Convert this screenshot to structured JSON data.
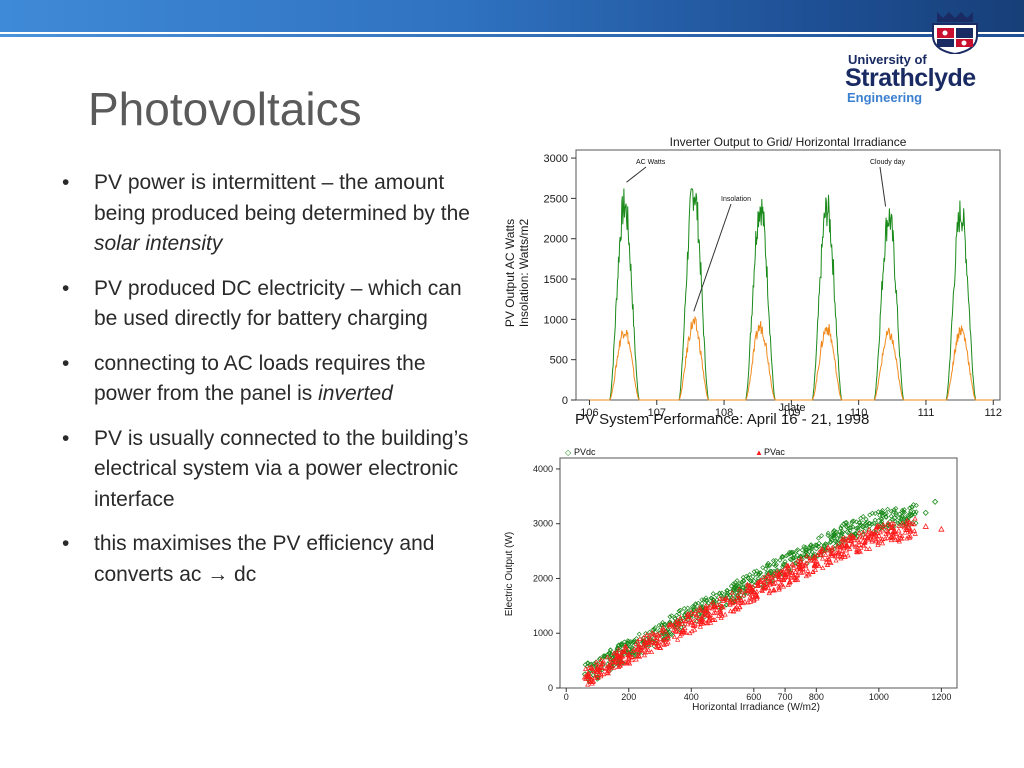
{
  "slide": {
    "title": "Photovoltaics",
    "logo": {
      "line1": "University of",
      "line2": "Strathclyde",
      "line3": "Engineering"
    },
    "bullets": [
      {
        "text": "PV power is intermittent – the amount being produced being determined by the ",
        "emphasis": "solar intensity",
        "after": ""
      },
      {
        "text": "PV produced DC electricity – which can be used directly for battery charging",
        "emphasis": "",
        "after": ""
      },
      {
        "text": "connecting to AC loads requires the power from the panel is ",
        "emphasis": "inverted",
        "after": ""
      },
      {
        "text": "PV is usually connected to the building’s electrical system via a power electronic interface",
        "emphasis": "",
        "after": ""
      },
      {
        "text": "this maximises the PV efficiency and converts ac → dc",
        "emphasis": "",
        "after": ""
      }
    ],
    "bullet_symbol": "•"
  },
  "colors": {
    "green": "#1a8a1a",
    "orange": "#f08a1c",
    "red": "#ff1a1a",
    "navy": "#1a2b63"
  },
  "chart_data": [
    {
      "type": "line",
      "title": "Inverter Output to Grid/ Horizontal Irradiance",
      "subtitle": "PV System Performance: April  16 - 21, 1998",
      "xlabel": "Jdate",
      "ylabel_lines": [
        "PV Output AC Watts",
        "Insolation: Watts/m2"
      ],
      "xlim": [
        105.8,
        112.1
      ],
      "ylim": [
        0,
        3100
      ],
      "xticks": [
        106,
        107,
        108,
        109,
        110,
        111,
        112
      ],
      "yticks": [
        0,
        500,
        1000,
        1500,
        2000,
        2500,
        3000
      ],
      "annotations": [
        {
          "text": "AC Watts",
          "x": 106.55,
          "y": 2700
        },
        {
          "text": "Insolation",
          "x": 107.55,
          "y": 1100
        },
        {
          "text": "Cloudy day",
          "x": 110.4,
          "y": 2400
        }
      ],
      "series": [
        {
          "name": "AC Watts",
          "color": "#1a8a1a",
          "days": [
            {
              "center": 106.52,
              "peak": 2650
            },
            {
              "center": 107.55,
              "peak": 2850
            },
            {
              "center": 108.54,
              "peak": 2650
            },
            {
              "center": 109.53,
              "peak": 2600
            },
            {
              "center": 110.45,
              "peak": 2500
            },
            {
              "center": 111.52,
              "peak": 2550
            }
          ]
        },
        {
          "name": "Insolation",
          "color": "#f08a1c",
          "days": [
            {
              "center": 106.52,
              "peak": 950
            },
            {
              "center": 107.55,
              "peak": 1050
            },
            {
              "center": 108.54,
              "peak": 1000
            },
            {
              "center": 109.53,
              "peak": 980
            },
            {
              "center": 110.45,
              "peak": 900
            },
            {
              "center": 111.52,
              "peak": 960
            }
          ]
        }
      ]
    },
    {
      "type": "scatter",
      "xlabel": "Horizontal Irradiance (W/m2)",
      "ylabel": "Electric Output (W)",
      "xlim": [
        -20,
        1250
      ],
      "ylim": [
        0,
        4200
      ],
      "xticks": [
        0,
        200,
        400,
        600,
        700,
        800,
        1000,
        1200
      ],
      "yticks": [
        0,
        1000,
        2000,
        3000,
        4000
      ],
      "legend": "top",
      "series": [
        {
          "name": "PVdc",
          "marker": "◇",
          "color": "#1a8a1a",
          "points": [
            [
              60,
              250
            ],
            [
              100,
              350
            ],
            [
              150,
              550
            ],
            [
              200,
              700
            ],
            [
              250,
              850
            ],
            [
              300,
              1000
            ],
            [
              350,
              1180
            ],
            [
              400,
              1350
            ],
            [
              450,
              1500
            ],
            [
              500,
              1650
            ],
            [
              550,
              1800
            ],
            [
              600,
              1950
            ],
            [
              650,
              2100
            ],
            [
              700,
              2250
            ],
            [
              750,
              2400
            ],
            [
              800,
              2550
            ],
            [
              850,
              2700
            ],
            [
              900,
              2850
            ],
            [
              950,
              2950
            ],
            [
              1000,
              3050
            ],
            [
              1050,
              3100
            ],
            [
              1100,
              3150
            ],
            [
              1150,
              3200
            ],
            [
              1180,
              3400
            ]
          ]
        },
        {
          "name": "PVac",
          "marker": "▲",
          "color": "#ff1a1a",
          "points": [
            [
              60,
              200
            ],
            [
              100,
              300
            ],
            [
              150,
              480
            ],
            [
              200,
              620
            ],
            [
              250,
              760
            ],
            [
              300,
              900
            ],
            [
              350,
              1050
            ],
            [
              400,
              1200
            ],
            [
              450,
              1350
            ],
            [
              500,
              1480
            ],
            [
              550,
              1620
            ],
            [
              600,
              1760
            ],
            [
              650,
              1900
            ],
            [
              700,
              2040
            ],
            [
              750,
              2180
            ],
            [
              800,
              2320
            ],
            [
              850,
              2450
            ],
            [
              900,
              2580
            ],
            [
              950,
              2680
            ],
            [
              1000,
              2780
            ],
            [
              1050,
              2850
            ],
            [
              1100,
              2900
            ],
            [
              1150,
              2950
            ],
            [
              1200,
              2900
            ]
          ]
        }
      ]
    }
  ]
}
